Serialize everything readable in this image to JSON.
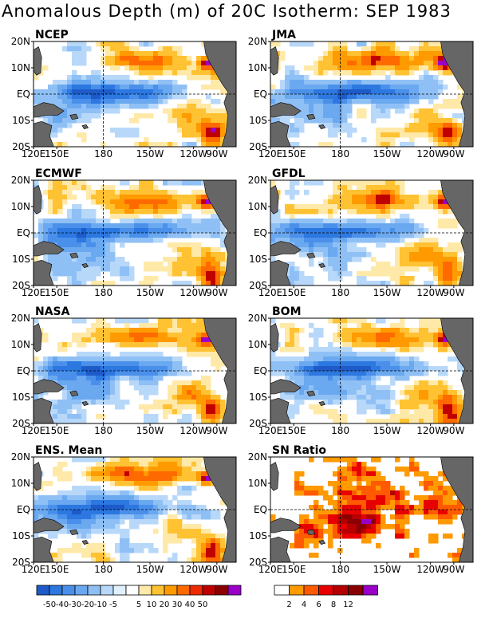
{
  "title": "Anomalous Depth (m) of 20C Isotherm: SEP 1983",
  "lat_labels": [
    "20N",
    "10N",
    "EQ",
    "10S",
    "20S"
  ],
  "lon_labels": [
    "120E",
    "150E",
    "180",
    "150W",
    "120W",
    "90W"
  ],
  "panels": [
    {
      "name": "NCEP"
    },
    {
      "name": "JMA"
    },
    {
      "name": "ECMWF"
    },
    {
      "name": "GFDL"
    },
    {
      "name": "NASA"
    },
    {
      "name": "BOM"
    },
    {
      "name": "ENS. Mean"
    },
    {
      "name": "SN Ratio"
    }
  ],
  "depth_colorbar": {
    "colors": [
      "#1e5bc8",
      "#2c78e0",
      "#4a90ea",
      "#6aa8f0",
      "#8fc0f5",
      "#b8d8fa",
      "#e0f0ff",
      "#ffffff",
      "#ffe9a8",
      "#ffc233",
      "#ff9a00",
      "#ff6a00",
      "#ee2a00",
      "#c00000",
      "#8c0000",
      "#9a00c8"
    ],
    "labels": [
      "-50",
      "-40",
      "-30",
      "-20",
      "-10",
      "-5",
      "5",
      "10",
      "20",
      "30",
      "40",
      "50"
    ]
  },
  "sn_colorbar": {
    "colors": [
      "#ffffff",
      "#ff9a00",
      "#ff5a00",
      "#e80000",
      "#b40000",
      "#8a0000",
      "#9a00c8"
    ],
    "labels": [
      "2",
      "4",
      "6",
      "8",
      "12"
    ]
  },
  "colors": {
    "land": "#666666",
    "grid": "#000000"
  }
}
